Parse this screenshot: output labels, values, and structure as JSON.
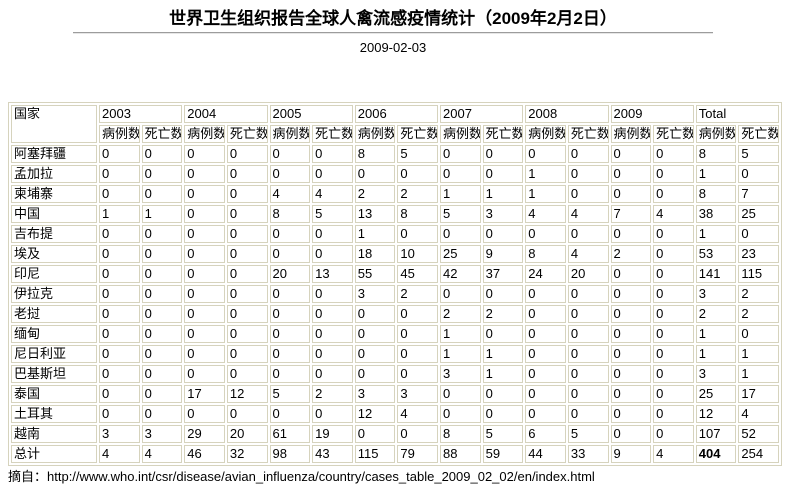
{
  "header": {
    "title": "世界卫生组织报告全球人禽流感疫情统计（2009年2月2日）",
    "date": "2009-02-03"
  },
  "table": {
    "country_header": "国家",
    "years": [
      "2003",
      "2004",
      "2005",
      "2006",
      "2007",
      "2008",
      "2009",
      "Total"
    ],
    "sub_headers": {
      "cases": "病例数",
      "deaths": "死亡数"
    },
    "rows": [
      {
        "country": "阿塞拜疆",
        "values": [
          0,
          0,
          0,
          0,
          0,
          0,
          8,
          5,
          0,
          0,
          0,
          0,
          0,
          0,
          8,
          5
        ]
      },
      {
        "country": "孟加拉",
        "values": [
          0,
          0,
          0,
          0,
          0,
          0,
          0,
          0,
          0,
          0,
          1,
          0,
          0,
          0,
          1,
          0
        ]
      },
      {
        "country": "柬埔寨",
        "values": [
          0,
          0,
          0,
          0,
          4,
          4,
          2,
          2,
          1,
          1,
          1,
          0,
          0,
          0,
          8,
          7
        ]
      },
      {
        "country": "中国",
        "values": [
          1,
          1,
          0,
          0,
          8,
          5,
          13,
          8,
          5,
          3,
          4,
          4,
          7,
          4,
          38,
          25
        ]
      },
      {
        "country": "吉布提",
        "values": [
          0,
          0,
          0,
          0,
          0,
          0,
          1,
          0,
          0,
          0,
          0,
          0,
          0,
          0,
          1,
          0
        ]
      },
      {
        "country": "埃及",
        "values": [
          0,
          0,
          0,
          0,
          0,
          0,
          18,
          10,
          25,
          9,
          8,
          4,
          2,
          0,
          53,
          23
        ]
      },
      {
        "country": "印尼",
        "values": [
          0,
          0,
          0,
          0,
          20,
          13,
          55,
          45,
          42,
          37,
          24,
          20,
          0,
          0,
          141,
          115
        ]
      },
      {
        "country": "伊拉克",
        "values": [
          0,
          0,
          0,
          0,
          0,
          0,
          3,
          2,
          0,
          0,
          0,
          0,
          0,
          0,
          3,
          2
        ]
      },
      {
        "country": "老挝",
        "values": [
          0,
          0,
          0,
          0,
          0,
          0,
          0,
          0,
          2,
          2,
          0,
          0,
          0,
          0,
          2,
          2
        ]
      },
      {
        "country": "缅甸",
        "values": [
          0,
          0,
          0,
          0,
          0,
          0,
          0,
          0,
          1,
          0,
          0,
          0,
          0,
          0,
          1,
          0
        ]
      },
      {
        "country": "尼日利亚",
        "values": [
          0,
          0,
          0,
          0,
          0,
          0,
          0,
          0,
          1,
          1,
          0,
          0,
          0,
          0,
          1,
          1
        ]
      },
      {
        "country": "巴基斯坦",
        "values": [
          0,
          0,
          0,
          0,
          0,
          0,
          0,
          0,
          3,
          1,
          0,
          0,
          0,
          0,
          3,
          1
        ]
      },
      {
        "country": "泰国",
        "values": [
          0,
          0,
          17,
          12,
          5,
          2,
          3,
          3,
          0,
          0,
          0,
          0,
          0,
          0,
          25,
          17
        ]
      },
      {
        "country": "土耳其",
        "values": [
          0,
          0,
          0,
          0,
          0,
          0,
          12,
          4,
          0,
          0,
          0,
          0,
          0,
          0,
          12,
          4
        ]
      },
      {
        "country": "越南",
        "values": [
          3,
          3,
          29,
          20,
          61,
          19,
          0,
          0,
          8,
          5,
          6,
          5,
          0,
          0,
          107,
          52
        ]
      },
      {
        "country": "总计",
        "values": [
          4,
          4,
          46,
          32,
          98,
          43,
          115,
          79,
          88,
          59,
          44,
          33,
          9,
          4,
          404,
          254
        ],
        "is_total": true,
        "bold_indices": [
          14
        ]
      }
    ]
  },
  "footer": {
    "source_label": "摘自：",
    "source_url": "http://www.who.int/csr/disease/avian_influenza/country/cases_table_2009_02_02/en/index.html"
  },
  "colors": {
    "table_border": "#d6d3bd",
    "divider": "#9c9c9c",
    "text": "#000000",
    "background": "#ffffff"
  }
}
